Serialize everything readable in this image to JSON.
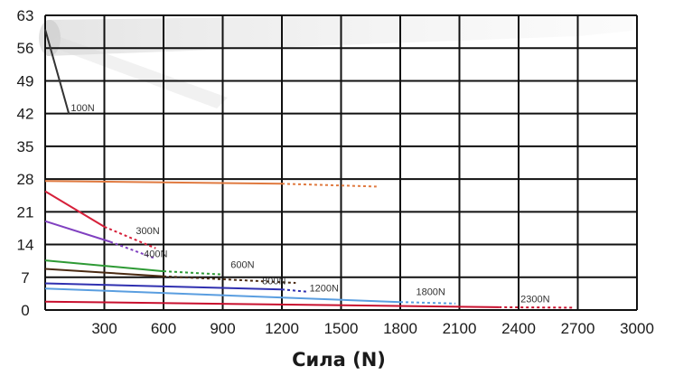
{
  "chart_data": {
    "type": "line",
    "xlabel": "Сила (N)",
    "ylabel": "",
    "xlim": [
      0,
      3000
    ],
    "ylim": [
      0,
      63
    ],
    "xticks": [
      300,
      600,
      900,
      1200,
      1500,
      1800,
      2100,
      2400,
      2700,
      3000
    ],
    "yticks": [
      0,
      7,
      14,
      21,
      28,
      35,
      42,
      49,
      56,
      63
    ],
    "grid": true,
    "series": [
      {
        "name": "100N",
        "color": "#333333",
        "solid": [
          [
            0,
            60
          ],
          [
            120,
            42
          ]
        ],
        "dotted": []
      },
      {
        "name": "",
        "color": "#e07a40",
        "solid": [
          [
            0,
            27.6
          ],
          [
            1200,
            27
          ]
        ],
        "dotted": [
          [
            1200,
            27
          ],
          [
            1680,
            26.4
          ]
        ]
      },
      {
        "name": "300N",
        "color": "#d6203a",
        "solid": [
          [
            0,
            25.4
          ],
          [
            300,
            17.8
          ]
        ],
        "dotted": [
          [
            300,
            17.8
          ],
          [
            560,
            13.2
          ]
        ]
      },
      {
        "name": "400N",
        "color": "#8040c0",
        "solid": [
          [
            0,
            19
          ],
          [
            330,
            14.6
          ]
        ],
        "dotted": [
          [
            330,
            14.6
          ],
          [
            560,
            11
          ]
        ]
      },
      {
        "name": "600N",
        "color": "#2e9a35",
        "solid": [
          [
            0,
            10.6
          ],
          [
            600,
            8.3
          ]
        ],
        "dotted": [
          [
            600,
            8.3
          ],
          [
            900,
            7.6
          ]
        ]
      },
      {
        "name": "800N",
        "color": "#4a2a12",
        "solid": [
          [
            0,
            8.8
          ],
          [
            600,
            7.2
          ]
        ],
        "dotted": [
          [
            600,
            7.2
          ],
          [
            1270,
            5.8
          ]
        ]
      },
      {
        "name": "1200N",
        "color": "#3030b0",
        "solid": [
          [
            0,
            5.7
          ],
          [
            1200,
            4.4
          ]
        ],
        "dotted": [
          [
            1200,
            4.4
          ],
          [
            1330,
            3.9
          ]
        ]
      },
      {
        "name": "1800N",
        "color": "#5a9ee0",
        "solid": [
          [
            0,
            4.6
          ],
          [
            1800,
            1.7
          ]
        ],
        "dotted": [
          [
            1800,
            1.7
          ],
          [
            2080,
            1.4
          ]
        ]
      },
      {
        "name": "2300N",
        "color": "#c8102e",
        "solid": [
          [
            0,
            1.8
          ],
          [
            2300,
            0.6
          ]
        ],
        "dotted": [
          [
            2300,
            0.6
          ],
          [
            2680,
            0.5
          ]
        ]
      }
    ],
    "annotations": [
      {
        "text": "100N",
        "x": 130,
        "y": 42.5
      },
      {
        "text": "300N",
        "x": 460,
        "y": 16.2
      },
      {
        "text": "400N",
        "x": 500,
        "y": 11.3
      },
      {
        "text": "600N",
        "x": 940,
        "y": 9
      },
      {
        "text": "800N",
        "x": 1100,
        "y": 5.5
      },
      {
        "text": "1200N",
        "x": 1340,
        "y": 4
      },
      {
        "text": "1800N",
        "x": 1880,
        "y": 3.2
      },
      {
        "text": "2300N",
        "x": 2410,
        "y": 1.6
      }
    ]
  }
}
